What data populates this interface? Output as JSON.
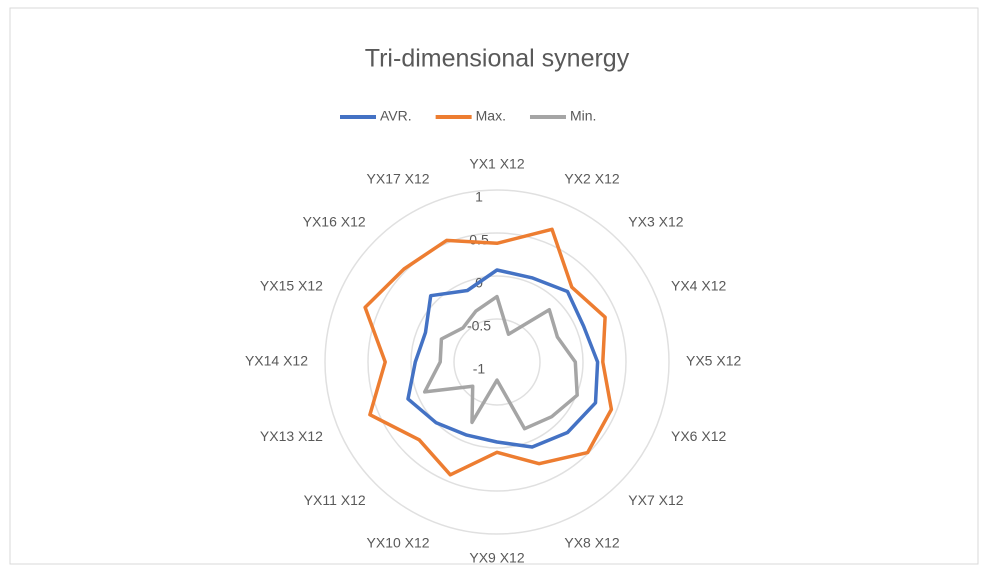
{
  "chart_data": {
    "type": "radar",
    "title": "Tri-dimensional synergy",
    "categories": [
      "YX1 X12",
      "YX2 X12",
      "YX3 X12",
      "YX4 X12",
      "YX5 X12",
      "YX6 X12",
      "YX7 X12",
      "YX8 X12",
      "YX9 X12",
      "YX10 X12",
      "YX11 X12",
      "YX13 X12",
      "YX14 X12",
      "YX15 X12",
      "YX16 X12",
      "YX17 X12"
    ],
    "series": [
      {
        "name": "AVR.",
        "color": "#4472c4",
        "values": [
          0.07,
          0.06,
          0.16,
          0.09,
          0.17,
          0.24,
          0.16,
          0.07,
          -0.07,
          -0.08,
          0.0,
          0.12,
          -0.05,
          -0.1,
          0.09,
          -0.1
        ]
      },
      {
        "name": "Max.",
        "color": "#ed7d31",
        "values": [
          0.38,
          0.67,
          0.23,
          0.36,
          0.23,
          0.44,
          0.49,
          0.28,
          0.05,
          0.42,
          0.28,
          0.6,
          0.3,
          0.66,
          0.53,
          0.53
        ]
      },
      {
        "name": "Min.",
        "color": "#a5a5a5",
        "values": [
          -0.24,
          -0.65,
          -0.14,
          -0.24,
          -0.09,
          0.01,
          -0.1,
          -0.16,
          -0.79,
          -0.24,
          -0.6,
          -0.09,
          -0.34,
          -0.3,
          -0.44,
          -0.36
        ]
      }
    ],
    "ylim": [
      -1,
      1
    ],
    "yticks": [
      -1,
      -0.5,
      0,
      0.5,
      1
    ],
    "grid": true,
    "legend": "top"
  }
}
